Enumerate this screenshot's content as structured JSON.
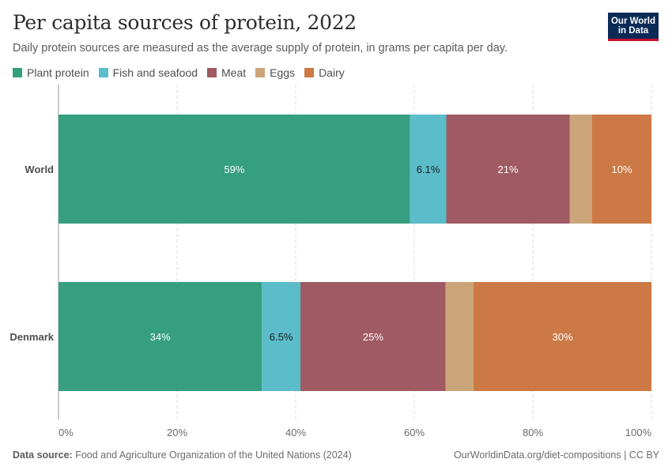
{
  "header": {
    "title": "Per capita sources of protein, 2022",
    "subtitle": "Daily protein sources are measured as the average supply of protein, in grams per capita per day.",
    "logo_line1": "Our World",
    "logo_line2": "in Data"
  },
  "footer": {
    "source_label": "Data source:",
    "source_text": "Food and Agriculture Organization of the United Nations (2024)",
    "url_text": "OurWorldinData.org/diet-compositions | CC BY"
  },
  "chart_data": {
    "type": "bar",
    "orientation": "horizontal",
    "stacked": true,
    "normalized": true,
    "categories": [
      "World",
      "Denmark"
    ],
    "series": [
      {
        "name": "Plant protein",
        "color": "#359f7f",
        "values": [
          59.3,
          34.3
        ],
        "labels": [
          "59%",
          "34%"
        ],
        "label_color": "#ffffff"
      },
      {
        "name": "Fish and seafood",
        "color": "#5bbcca",
        "values": [
          6.1,
          6.5
        ],
        "labels": [
          "6.1%",
          "6.5%"
        ],
        "label_color": "#1a1a1a"
      },
      {
        "name": "Meat",
        "color": "#a05a63",
        "values": [
          20.8,
          24.5
        ],
        "labels": [
          "21%",
          "25%"
        ],
        "label_color": "#ffffff"
      },
      {
        "name": "Eggs",
        "color": "#cba57a",
        "values": [
          3.8,
          4.7
        ],
        "labels": [
          "",
          ""
        ],
        "label_color": "#1a1a1a"
      },
      {
        "name": "Dairy",
        "color": "#cc7945",
        "values": [
          10.0,
          30.0
        ],
        "labels": [
          "10%",
          "30%"
        ],
        "label_color": "#ffffff"
      }
    ],
    "xlim": [
      0,
      100
    ],
    "xticks": [
      0,
      20,
      40,
      60,
      80,
      100
    ],
    "xtick_labels": [
      "0%",
      "20%",
      "40%",
      "60%",
      "80%",
      "100%"
    ],
    "grid": true,
    "legend": "top-left"
  }
}
